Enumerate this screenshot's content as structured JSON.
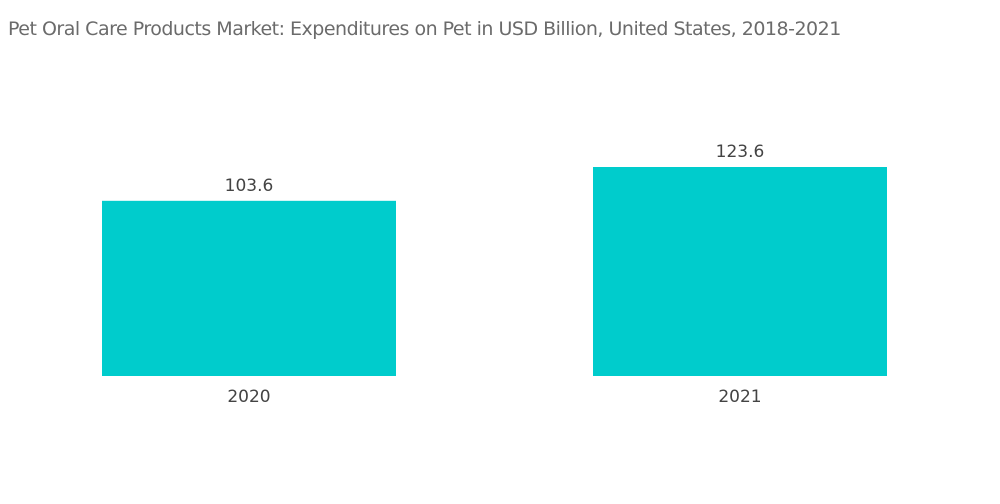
{
  "chart_data": {
    "type": "bar",
    "title": "Pet Oral Care Products Market: Expenditures on Pet in USD Billion, United States, 2018-2021",
    "categories": [
      "2020",
      "2021"
    ],
    "values": [
      103.6,
      123.6
    ],
    "value_labels": [
      "103.6",
      "123.6"
    ],
    "xlabel": "",
    "ylabel": "",
    "ylim": [
      0,
      123.6
    ],
    "grid": false,
    "legend": "none",
    "bar_color": "#00cccc"
  }
}
